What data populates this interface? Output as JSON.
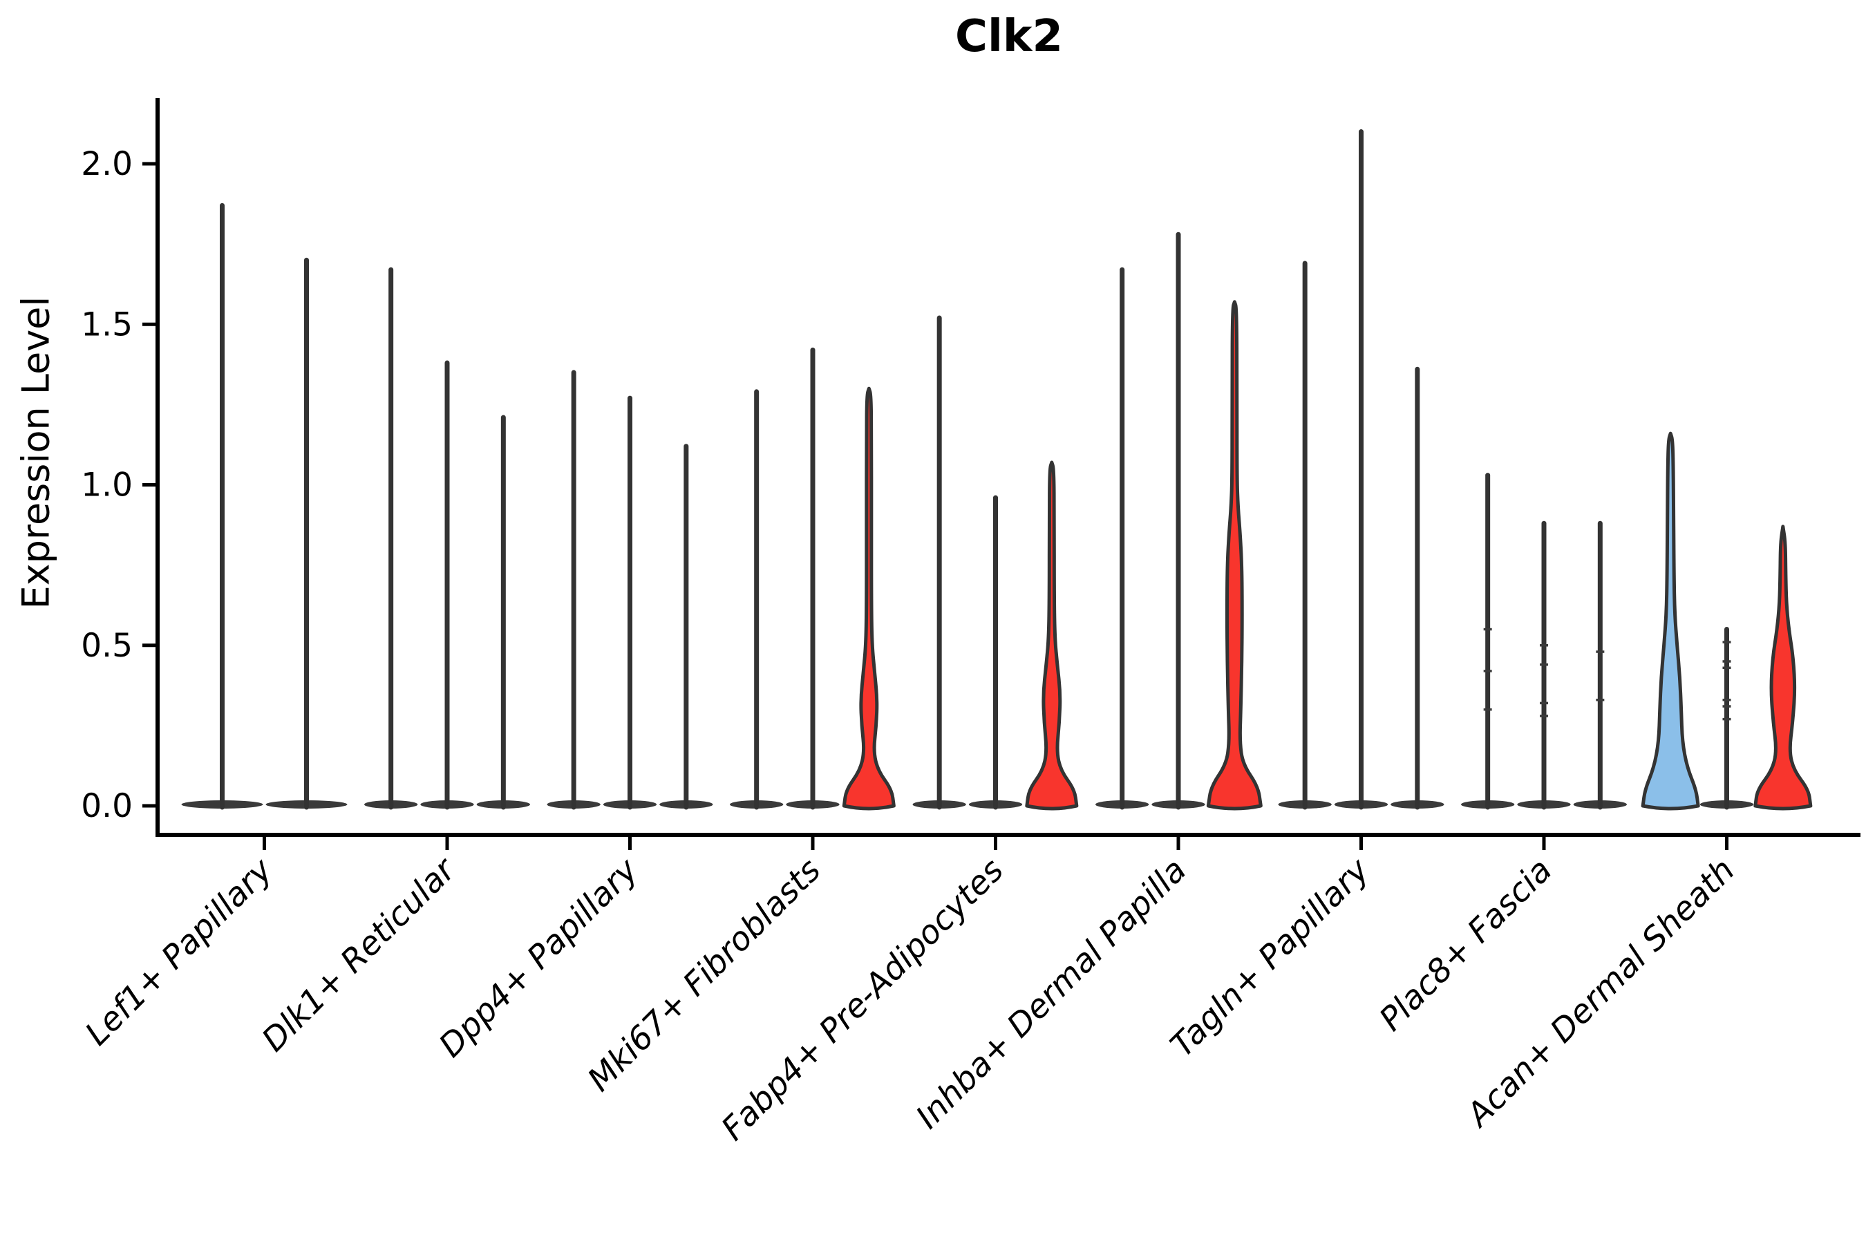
{
  "chart_data": {
    "type": "violin",
    "title": "Clk2",
    "ylabel": "Expression Level",
    "yticks": [
      0.0,
      0.5,
      1.0,
      1.5,
      2.0
    ],
    "ylim": [
      0,
      2.2
    ],
    "grid": false,
    "legend": "none",
    "colors": {
      "red": "#F8352D",
      "blue": "#8BBFE9",
      "outline": "#333333",
      "spike": "#3A3A3A",
      "axis": "#000000"
    },
    "categories": [
      "Lef1+ Papillary",
      "Dlk1+ Reticular",
      "Dpp4+ Papillary",
      "Mki67+ Fibroblasts",
      "Fabp4+ Pre-Adipocytes",
      "Inhba+ Dermal Papilla",
      "Tagln+ Papillary",
      "Plac8+ Fascia",
      "Acan+ Dermal Sheath"
    ],
    "groups": [
      {
        "category": "Lef1+ Papillary",
        "violins": [
          {
            "style": "spike",
            "max": 1.87
          },
          {
            "style": "spike",
            "max": 1.7
          }
        ]
      },
      {
        "category": "Dlk1+ Reticular",
        "violins": [
          {
            "style": "spike",
            "max": 1.67
          },
          {
            "style": "spike",
            "max": 1.38
          },
          {
            "style": "spike",
            "max": 1.21
          }
        ]
      },
      {
        "category": "Dpp4+ Papillary",
        "violins": [
          {
            "style": "spike",
            "max": 1.35
          },
          {
            "style": "spike",
            "max": 1.27
          },
          {
            "style": "spike",
            "max": 1.12
          }
        ]
      },
      {
        "category": "Mki67+ Fibroblasts",
        "violins": [
          {
            "style": "spike",
            "max": 1.29
          },
          {
            "style": "spike",
            "max": 1.42
          },
          {
            "style": "violin",
            "max": 1.3,
            "fill": "red",
            "profile": [
              [
                0,
                36
              ],
              [
                0.05,
                33
              ],
              [
                0.11,
                13
              ],
              [
                0.17,
                6.5
              ],
              [
                0.25,
                10.5
              ],
              [
                0.33,
                12
              ],
              [
                0.42,
                8
              ],
              [
                0.5,
                4.5
              ],
              [
                0.62,
                3.5
              ],
              [
                0.9,
                3.5
              ],
              [
                1.15,
                3.5
              ],
              [
                1.28,
                3
              ],
              [
                1.3,
                0
              ]
            ]
          }
        ]
      },
      {
        "category": "Fabp4+ Pre-Adipocytes",
        "violins": [
          {
            "style": "spike",
            "max": 1.52
          },
          {
            "style": "spike",
            "max": 0.96
          },
          {
            "style": "violin",
            "max": 1.07,
            "fill": "red",
            "profile": [
              [
                0,
                36
              ],
              [
                0.05,
                33
              ],
              [
                0.11,
                13
              ],
              [
                0.17,
                7
              ],
              [
                0.26,
                11
              ],
              [
                0.35,
                12.5
              ],
              [
                0.44,
                8
              ],
              [
                0.52,
                4.5
              ],
              [
                0.65,
                3.5
              ],
              [
                0.9,
                3.5
              ],
              [
                1.05,
                3
              ],
              [
                1.07,
                0
              ]
            ]
          }
        ]
      },
      {
        "category": "Inhba+ Dermal Papilla",
        "violins": [
          {
            "style": "spike",
            "max": 1.67
          },
          {
            "style": "spike",
            "max": 1.78
          },
          {
            "style": "violin",
            "max": 1.57,
            "fill": "red",
            "profile": [
              [
                0,
                38
              ],
              [
                0.06,
                34
              ],
              [
                0.13,
                12
              ],
              [
                0.2,
                7.5
              ],
              [
                0.3,
                9
              ],
              [
                0.45,
                10.5
              ],
              [
                0.6,
                11
              ],
              [
                0.75,
                10.5
              ],
              [
                0.85,
                8
              ],
              [
                0.93,
                5
              ],
              [
                1.02,
                3.5
              ],
              [
                1.3,
                3.5
              ],
              [
                1.55,
                3
              ],
              [
                1.57,
                0
              ]
            ]
          }
        ]
      },
      {
        "category": "Tagln+ Papillary",
        "violins": [
          {
            "style": "spike",
            "max": 1.69
          },
          {
            "style": "spike",
            "max": 2.1
          },
          {
            "style": "spike",
            "max": 1.36
          }
        ]
      },
      {
        "category": "Plac8+ Fascia",
        "violins": [
          {
            "style": "spike",
            "max": 1.03,
            "dots": [
              0.55,
              0.42,
              0.3
            ]
          },
          {
            "style": "spike",
            "max": 0.88,
            "dots": [
              0.5,
              0.44,
              0.32,
              0.28
            ]
          },
          {
            "style": "spike",
            "max": 0.88,
            "dots": [
              0.48,
              0.33
            ]
          }
        ]
      },
      {
        "category": "Acan+ Dermal Sheath",
        "violins": [
          {
            "style": "violin",
            "max": 1.16,
            "fill": "blue",
            "profile": [
              [
                0,
                40
              ],
              [
                0.05,
                37
              ],
              [
                0.12,
                24
              ],
              [
                0.2,
                17
              ],
              [
                0.3,
                15.5
              ],
              [
                0.4,
                13.5
              ],
              [
                0.5,
                9.5
              ],
              [
                0.6,
                6
              ],
              [
                0.72,
                5
              ],
              [
                0.88,
                4.5
              ],
              [
                1.05,
                4
              ],
              [
                1.14,
                3
              ],
              [
                1.16,
                0
              ]
            ]
          },
          {
            "style": "spike",
            "max": 0.55,
            "dots": [
              0.51,
              0.45,
              0.43,
              0.33,
              0.31,
              0.27
            ]
          },
          {
            "style": "violin",
            "max": 0.87,
            "fill": "red",
            "profile": [
              [
                0,
                40
              ],
              [
                0.05,
                37
              ],
              [
                0.11,
                16
              ],
              [
                0.17,
                9
              ],
              [
                0.26,
                14
              ],
              [
                0.36,
                17.5
              ],
              [
                0.46,
                15
              ],
              [
                0.55,
                8.5
              ],
              [
                0.63,
                5
              ],
              [
                0.72,
                4
              ],
              [
                0.82,
                3.5
              ],
              [
                0.87,
                0
              ]
            ]
          }
        ]
      }
    ]
  }
}
